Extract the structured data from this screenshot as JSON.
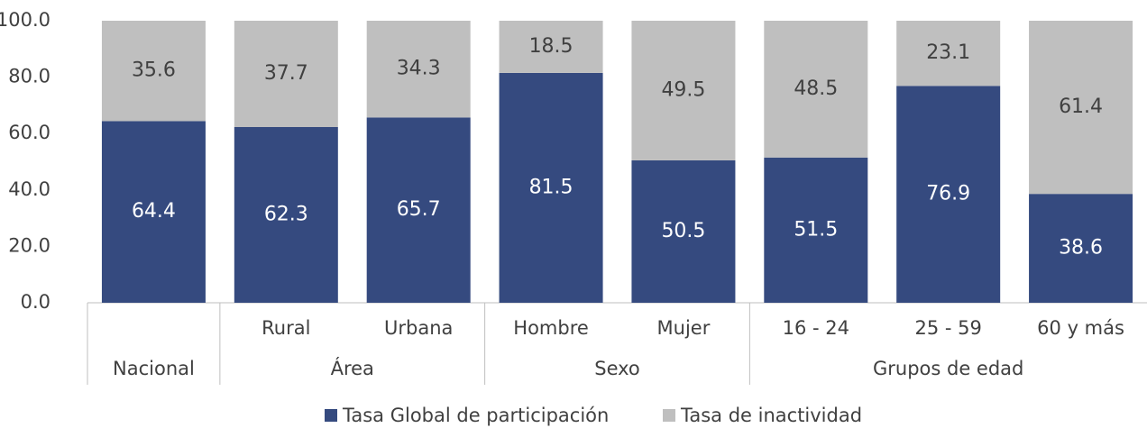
{
  "chart_data": {
    "type": "stacked_bar",
    "groups": [
      {
        "name": "Nacional",
        "categories": [
          null
        ]
      },
      {
        "name": "Área",
        "categories": [
          "Rural",
          "Urbana"
        ]
      },
      {
        "name": "Sexo",
        "categories": [
          "Hombre",
          "Mujer"
        ]
      },
      {
        "name": "Grupos de edad",
        "categories": [
          "16 - 24",
          "25 - 59",
          "60 y más"
        ]
      }
    ],
    "series": [
      {
        "name": "Tasa Global de participación",
        "color": "#354a7f",
        "values": [
          64.4,
          62.3,
          65.7,
          81.5,
          50.5,
          51.5,
          76.9,
          38.6
        ]
      },
      {
        "name": "Tasa de inactividad",
        "color": "#bfbfbf",
        "values": [
          35.6,
          37.7,
          34.3,
          18.5,
          49.5,
          48.5,
          23.1,
          61.4
        ]
      }
    ],
    "ylim": [
      0,
      100
    ],
    "yticks": [
      {
        "value": 0,
        "label": "0.0"
      },
      {
        "value": 20,
        "label": "20.0"
      },
      {
        "value": 40,
        "label": "40.0"
      },
      {
        "value": 60,
        "label": "60.0"
      },
      {
        "value": 80,
        "label": "80.0"
      },
      {
        "value": 100,
        "label": "100.0"
      }
    ],
    "legend": "bottom"
  }
}
